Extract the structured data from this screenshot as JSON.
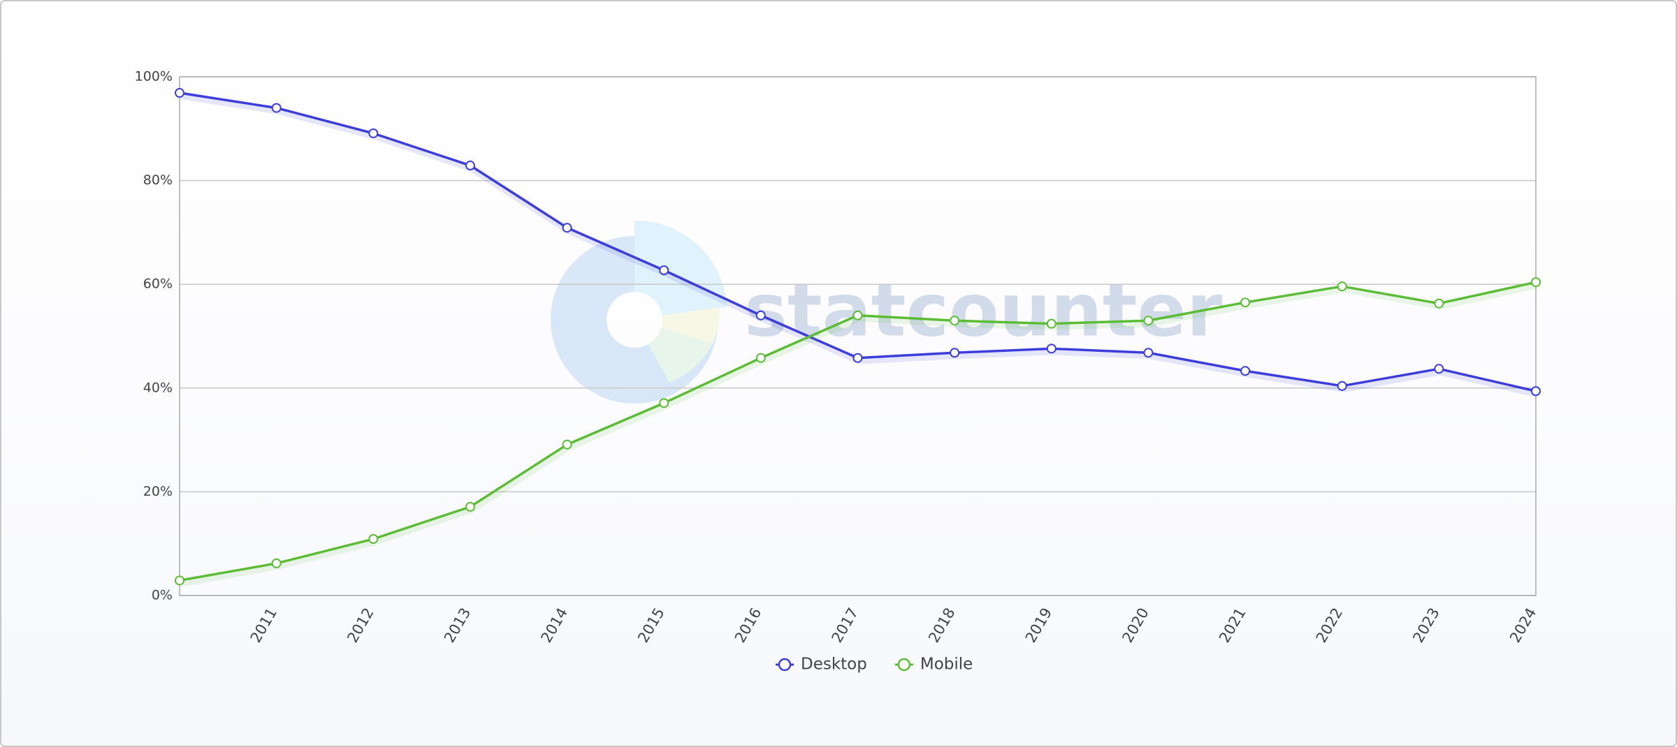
{
  "chart_data": {
    "type": "line",
    "watermark": "statcounter",
    "categories": [
      null,
      "2011",
      "2012",
      "2013",
      "2014",
      "2015",
      "2016",
      "2017",
      "2018",
      "2019",
      "2020",
      "2021",
      "2022",
      "2023",
      "2024"
    ],
    "series": [
      {
        "name": "Desktop",
        "color": "#3d3ddb",
        "values": [
          96.9,
          94.0,
          89.1,
          82.9,
          70.9,
          62.7,
          54.0,
          45.8,
          46.8,
          47.6,
          46.8,
          43.3,
          40.4,
          43.7,
          39.4
        ]
      },
      {
        "name": "Mobile",
        "color": "#5bbd36",
        "values": [
          2.9,
          6.2,
          10.9,
          17.1,
          29.1,
          37.1,
          45.8,
          54.0,
          53.0,
          52.4,
          53.0,
          56.5,
          59.6,
          56.3,
          60.4
        ]
      }
    ],
    "ylim": [
      0,
      100
    ],
    "yticks": [
      {
        "value": 0,
        "label": "0%"
      },
      {
        "value": 20,
        "label": "20%"
      },
      {
        "value": 40,
        "label": "40%"
      },
      {
        "value": 60,
        "label": "60%"
      },
      {
        "value": 80,
        "label": "80%"
      },
      {
        "value": 100,
        "label": "100%"
      }
    ],
    "grid": true,
    "legend": "bottom"
  }
}
